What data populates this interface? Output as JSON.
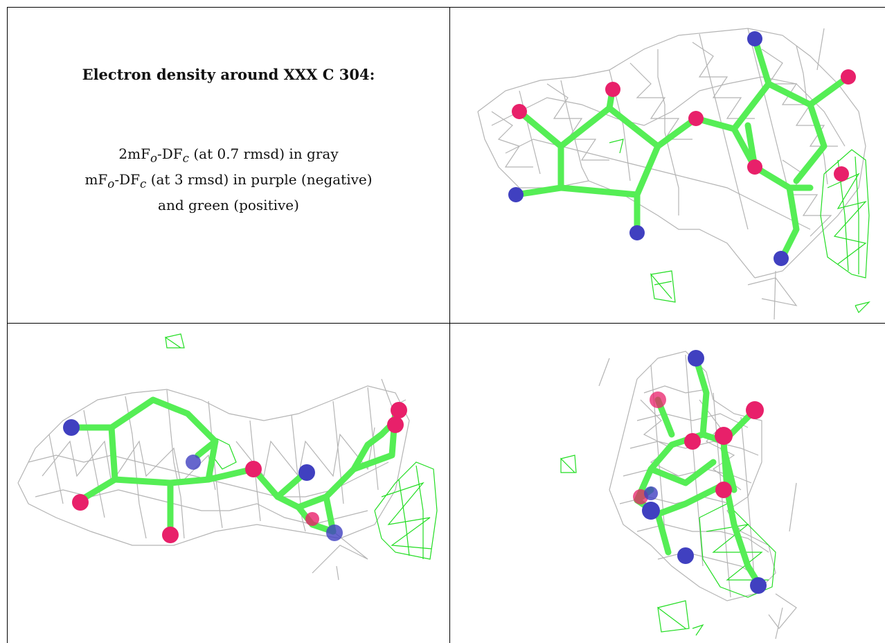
{
  "caption": {
    "title": "Electron density around XXX C 304:",
    "line1_a": "2mF",
    "line1_sub_o": "o",
    "line1_b": "-DF",
    "line1_sub_c": "c",
    "line1_c": " (at 0.7 rmsd) in gray",
    "line2_a": "mF",
    "line2_sub_o": "o",
    "line2_b": "-DF",
    "line2_sub_c": "c",
    "line2_c": " (at 3 rmsd) in purple (negative)",
    "line3": "and green (positive)"
  },
  "colors": {
    "mesh_2fofc": "#b4b4b4",
    "mesh_positive": "#22dd22",
    "carbon_stick": "#55ee55",
    "oxygen": "#e8206a",
    "nitrogen": "#4040c0",
    "border": "#000000"
  },
  "views": [
    {
      "id": "view-1",
      "description_name": "density-view-top-right"
    },
    {
      "id": "view-2",
      "description_name": "density-view-bottom-left"
    },
    {
      "id": "view-3",
      "description_name": "density-view-bottom-right"
    }
  ]
}
